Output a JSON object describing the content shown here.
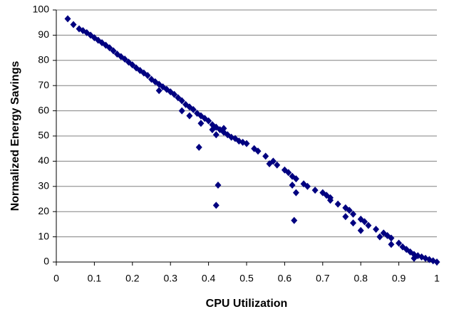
{
  "chart_data": {
    "type": "scatter",
    "x_label": "CPU Utilization",
    "y_label": "Normalized Energy Savings",
    "color": "#000080",
    "grid": true,
    "xlim": [
      0,
      1
    ],
    "xticks": [
      0,
      0.1,
      0.2,
      0.3,
      0.4,
      0.5,
      0.6,
      0.7,
      0.8,
      0.9,
      1
    ],
    "ylim": [
      0,
      100
    ],
    "yticks": [
      0,
      10,
      20,
      30,
      40,
      50,
      60,
      70,
      80,
      90,
      100
    ],
    "x": [
      0.03,
      0.045,
      0.06,
      0.07,
      0.08,
      0.09,
      0.1,
      0.11,
      0.12,
      0.13,
      0.14,
      0.15,
      0.16,
      0.17,
      0.18,
      0.19,
      0.2,
      0.21,
      0.22,
      0.23,
      0.24,
      0.25,
      0.26,
      0.27,
      0.28,
      0.29,
      0.3,
      0.31,
      0.32,
      0.33,
      0.34,
      0.35,
      0.36,
      0.37,
      0.38,
      0.39,
      0.4,
      0.41,
      0.42,
      0.43,
      0.44,
      0.45,
      0.46,
      0.47,
      0.48,
      0.49,
      0.5,
      0.52,
      0.53,
      0.55,
      0.57,
      0.58,
      0.6,
      0.61,
      0.62,
      0.63,
      0.65,
      0.66,
      0.68,
      0.7,
      0.71,
      0.72,
      0.74,
      0.76,
      0.77,
      0.78,
      0.8,
      0.81,
      0.82,
      0.84,
      0.86,
      0.87,
      0.88,
      0.9,
      0.91,
      0.92,
      0.93,
      0.94,
      0.95,
      0.96,
      0.97,
      0.98,
      0.99,
      1,
      0.27,
      0.33,
      0.35,
      0.38,
      0.41,
      0.42,
      0.44,
      0.56,
      0.62,
      0.63,
      0.72,
      0.76,
      0.78,
      0.8,
      0.85,
      0.88,
      0.94,
      0.375,
      0.425,
      0.42,
      0.625
    ],
    "values": [
      96.5,
      94.2,
      92.5,
      91.8,
      91,
      90,
      89,
      88,
      87,
      86,
      85,
      83.8,
      82.5,
      81.5,
      80.5,
      79.3,
      78.2,
      77,
      76,
      75,
      74,
      72.5,
      71.5,
      70.5,
      69.5,
      68.5,
      67.5,
      66.5,
      65.2,
      64,
      62.5,
      61.5,
      60.5,
      59,
      58,
      57,
      56,
      54.5,
      53.5,
      52.5,
      51.5,
      50.5,
      49.5,
      49,
      48,
      47.5,
      47,
      45,
      44,
      42,
      40,
      38.5,
      36.5,
      35.5,
      34,
      33,
      31,
      30,
      28.5,
      27.5,
      26.5,
      25.5,
      23,
      21.5,
      20.5,
      19,
      17,
      16,
      14.5,
      13,
      11.5,
      10.5,
      9.5,
      7.5,
      6,
      5,
      4,
      3,
      2.5,
      2,
      1.5,
      1,
      0.5,
      0,
      68,
      60,
      58,
      55,
      52.5,
      50.5,
      53,
      39,
      30.5,
      27.5,
      24.5,
      18,
      15.5,
      12.5,
      10,
      7,
      1.5,
      45.5,
      30.5,
      22.5,
      16.5
    ]
  }
}
